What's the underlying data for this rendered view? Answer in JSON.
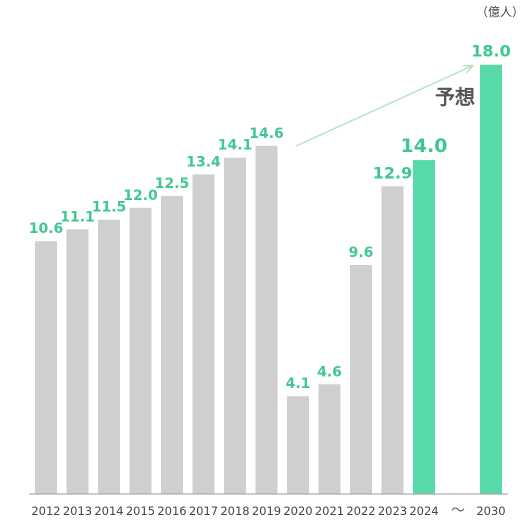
{
  "chart_data": {
    "type": "bar",
    "unit": "（億人）",
    "categories": [
      "2012",
      "2013",
      "2014",
      "2015",
      "2016",
      "2017",
      "2018",
      "2019",
      "2020",
      "2021",
      "2022",
      "2023",
      "2024",
      "2030"
    ],
    "values": [
      10.6,
      11.1,
      11.5,
      12.0,
      12.5,
      13.4,
      14.1,
      14.6,
      4.1,
      4.6,
      9.6,
      12.9,
      14.0,
      18.0
    ],
    "value_labels": [
      "10.6",
      "11.1",
      "11.5",
      "12.0",
      "12.5",
      "13.4",
      "14.1",
      "14.6",
      "4.1",
      "4.6",
      "9.6",
      "12.9",
      "14.0",
      "18.0"
    ],
    "highlighted": [
      "2024",
      "2030"
    ],
    "gap_marker": "～",
    "annotation": "予想",
    "ylim": [
      0,
      18.0
    ],
    "grid": false,
    "colors": {
      "normal_bar": "#d0cfcf",
      "highlight_bar": "#58d9a8",
      "label": "#3ec88f",
      "arrow": "#b5e5c3",
      "axis": "#9e9e9e"
    }
  }
}
